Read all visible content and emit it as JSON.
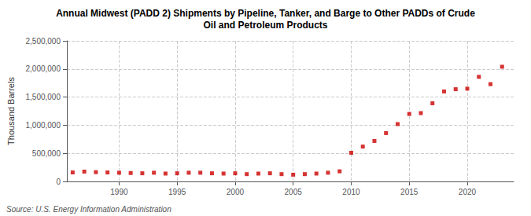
{
  "chart_data": {
    "type": "scatter",
    "title": "Annual Midwest (PADD 2) Shipments by Pipeline, Tanker, and Barge to Other PADDs of Crude\nOil and Petroleum Products",
    "ylabel": "Thousand Barrels",
    "annotations": [
      "Source: U.S. Energy Information Administration"
    ],
    "x": [
      1986,
      1987,
      1988,
      1989,
      1990,
      1991,
      1992,
      1993,
      1994,
      1995,
      1996,
      1997,
      1998,
      1999,
      2000,
      2001,
      2002,
      2003,
      2004,
      2005,
      2006,
      2007,
      2008,
      2009,
      2010,
      2011,
      2012,
      2013,
      2014,
      2015,
      2016,
      2017,
      2018,
      2019,
      2020,
      2021,
      2022,
      2023
    ],
    "values": [
      160000,
      175000,
      165000,
      160000,
      155000,
      150000,
      145000,
      155000,
      140000,
      145000,
      155000,
      155000,
      145000,
      140000,
      145000,
      130000,
      140000,
      145000,
      130000,
      120000,
      130000,
      140000,
      155000,
      180000,
      510000,
      620000,
      720000,
      860000,
      1020000,
      1200000,
      1215000,
      1390000,
      1600000,
      1640000,
      1650000,
      1860000,
      1730000,
      2040000
    ],
    "color": "#cc0000",
    "marker": "square",
    "xlim": [
      1985.5,
      2024
    ],
    "xticks": [
      1990,
      1995,
      2000,
      2005,
      2010,
      2015,
      2020
    ],
    "ylim": [
      0,
      2500000
    ],
    "yticks": [
      0,
      {
        "value": 500000,
        "label": "500,000"
      },
      {
        "value": 1000000,
        "label": "1,000,000"
      },
      {
        "value": 1500000,
        "label": "1,500,000"
      },
      {
        "value": 2000000,
        "label": "2,000,000"
      },
      {
        "value": 2500000,
        "label": "2,500,000"
      }
    ],
    "grid": true
  }
}
